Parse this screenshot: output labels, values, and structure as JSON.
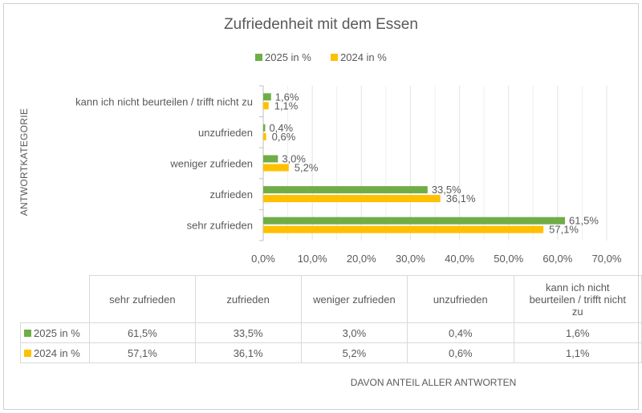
{
  "chart_data": {
    "type": "bar",
    "orientation": "horizontal",
    "title": "Zufriedenheit mit dem Essen",
    "ylabel": "ANTWORTKATEGORIE",
    "xlabel": "DAVON ANTEIL ALLER ANTWORTEN",
    "categories": [
      "sehr zufrieden",
      "zufrieden",
      "weniger zufrieden",
      "unzufrieden",
      "kann ich nicht beurteilen / trifft nicht zu"
    ],
    "series": [
      {
        "name": "2025 in %",
        "color": "#70ad47",
        "values": [
          61.5,
          33.5,
          3.0,
          0.4,
          1.6
        ],
        "labels": [
          "61,5%",
          "33,5%",
          "3,0%",
          "0,4%",
          "1,6%"
        ]
      },
      {
        "name": "2024 in %",
        "color": "#ffc000",
        "values": [
          57.1,
          36.1,
          5.2,
          0.6,
          1.1
        ],
        "labels": [
          "57,1%",
          "36,1%",
          "5,2%",
          "0,6%",
          "1,1%"
        ]
      }
    ],
    "xlim": [
      0,
      70
    ],
    "xticks": [
      "0,0%",
      "10,0%",
      "20,0%",
      "30,0%",
      "40,0%",
      "50,0%",
      "60,0%",
      "70,0%"
    ],
    "grid": true,
    "legend": "top",
    "table_headers": [
      "sehr zufrieden",
      "zufrieden",
      "weniger zufrieden",
      "unzufrieden",
      "kann ich nicht beurteilen / trifft nicht zu"
    ]
  }
}
